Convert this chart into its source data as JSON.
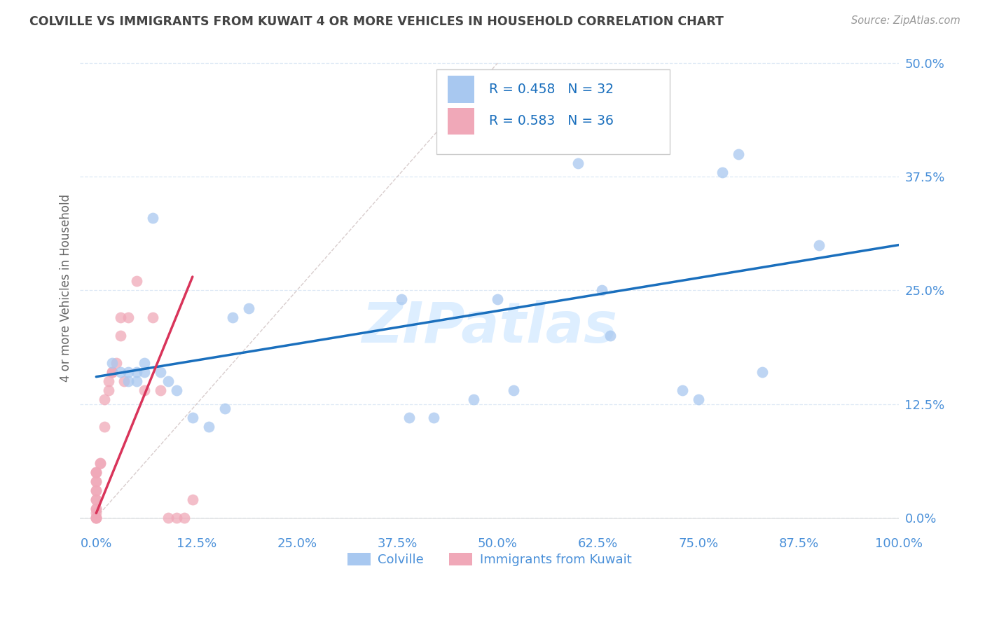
{
  "title": "COLVILLE VS IMMIGRANTS FROM KUWAIT 4 OR MORE VEHICLES IN HOUSEHOLD CORRELATION CHART",
  "source": "Source: ZipAtlas.com",
  "xlabel_ticks": [
    "0.0%",
    "12.5%",
    "25.0%",
    "37.5%",
    "50.0%",
    "62.5%",
    "75.0%",
    "87.5%",
    "100.0%"
  ],
  "xlabel_vals": [
    0.0,
    0.125,
    0.25,
    0.375,
    0.5,
    0.625,
    0.75,
    0.875,
    1.0
  ],
  "ylabel_ticks": [
    "0.0%",
    "12.5%",
    "25.0%",
    "37.5%",
    "50.0%"
  ],
  "ylabel_vals": [
    0.0,
    0.125,
    0.25,
    0.375,
    0.5
  ],
  "xlim": [
    -0.02,
    1.0
  ],
  "ylim": [
    -0.01,
    0.52
  ],
  "colville_R": 0.458,
  "colville_N": 32,
  "kuwait_R": 0.583,
  "kuwait_N": 36,
  "colville_color": "#a8c8f0",
  "kuwait_color": "#f0a8b8",
  "colville_line_color": "#1a6fbd",
  "kuwait_line_color": "#d9345a",
  "diagonal_color": "#c8b8b8",
  "legend_text_color": "#1a6fbd",
  "axis_tick_color": "#4a90d9",
  "title_color": "#444444",
  "watermark_color": "#ddeeff",
  "colville_x": [
    0.02,
    0.03,
    0.04,
    0.04,
    0.05,
    0.05,
    0.06,
    0.06,
    0.07,
    0.08,
    0.09,
    0.1,
    0.12,
    0.14,
    0.16,
    0.17,
    0.19,
    0.38,
    0.39,
    0.42,
    0.47,
    0.5,
    0.52,
    0.6,
    0.63,
    0.64,
    0.73,
    0.75,
    0.78,
    0.8,
    0.83,
    0.9
  ],
  "colville_y": [
    0.17,
    0.16,
    0.15,
    0.16,
    0.15,
    0.16,
    0.16,
    0.17,
    0.33,
    0.16,
    0.15,
    0.14,
    0.11,
    0.1,
    0.12,
    0.22,
    0.23,
    0.24,
    0.11,
    0.11,
    0.13,
    0.24,
    0.14,
    0.39,
    0.25,
    0.2,
    0.14,
    0.13,
    0.38,
    0.4,
    0.16,
    0.3
  ],
  "kuwait_x": [
    0.0,
    0.0,
    0.0,
    0.0,
    0.0,
    0.0,
    0.0,
    0.0,
    0.0,
    0.0,
    0.0,
    0.0,
    0.0,
    0.0,
    0.0,
    0.005,
    0.005,
    0.01,
    0.01,
    0.015,
    0.015,
    0.02,
    0.02,
    0.025,
    0.03,
    0.03,
    0.035,
    0.04,
    0.05,
    0.06,
    0.07,
    0.08,
    0.09,
    0.1,
    0.11,
    0.12
  ],
  "kuwait_y": [
    0.0,
    0.0,
    0.0,
    0.005,
    0.01,
    0.01,
    0.02,
    0.02,
    0.03,
    0.03,
    0.04,
    0.04,
    0.05,
    0.05,
    0.05,
    0.06,
    0.06,
    0.1,
    0.13,
    0.14,
    0.15,
    0.16,
    0.16,
    0.17,
    0.2,
    0.22,
    0.15,
    0.22,
    0.26,
    0.14,
    0.22,
    0.14,
    0.0,
    0.0,
    0.0,
    0.02
  ],
  "colville_line_x": [
    0.0,
    1.0
  ],
  "colville_line_y": [
    0.155,
    0.3
  ],
  "kuwait_line_x": [
    0.0,
    0.12
  ],
  "kuwait_line_y": [
    0.005,
    0.265
  ],
  "background_color": "#ffffff",
  "grid_color": "#dde8f5"
}
